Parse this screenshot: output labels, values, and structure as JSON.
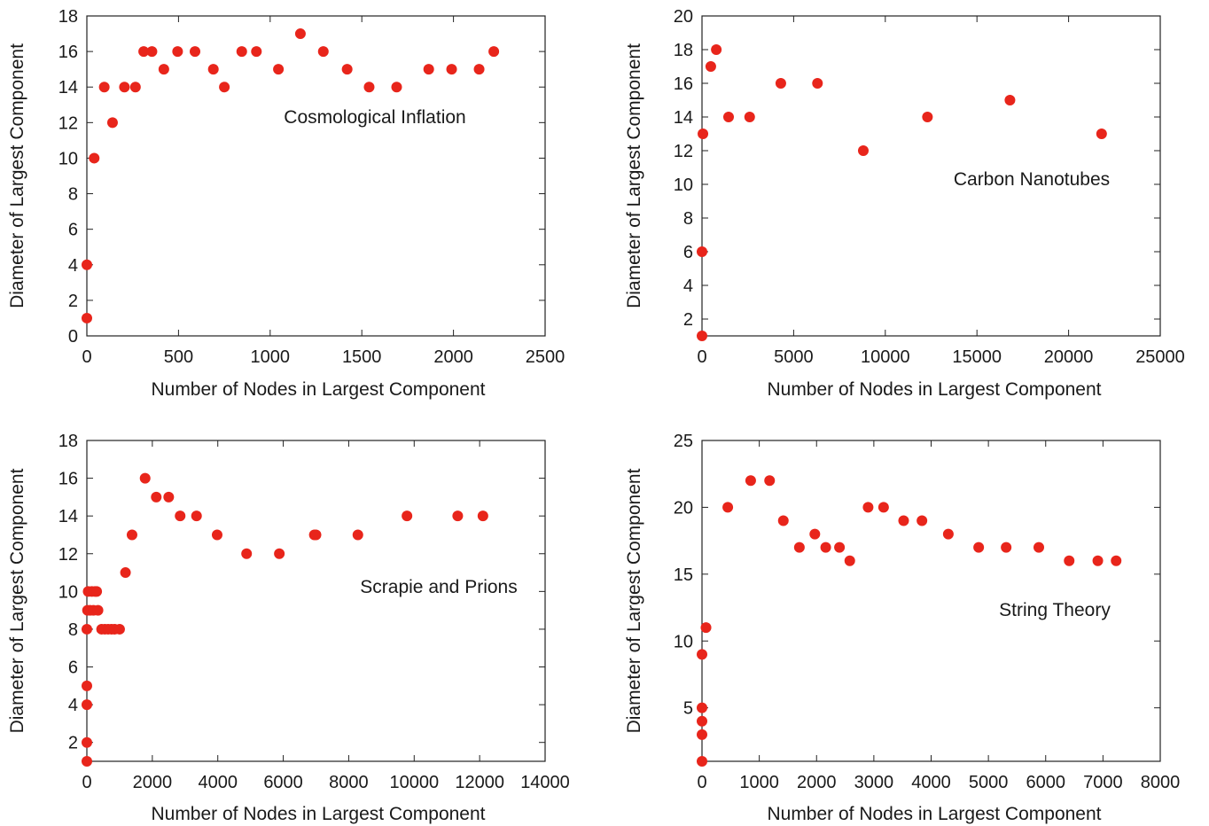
{
  "figure": {
    "marker_color": "#e8251b"
  },
  "chart_data": [
    {
      "type": "scatter",
      "title": "",
      "annotation": "Cosmological Inflation",
      "xlabel": "Number of Nodes in Largest Component",
      "ylabel": "Diameter of Largest Component",
      "xlim": [
        0,
        2500
      ],
      "ylim": [
        0,
        18
      ],
      "xticks": [
        0,
        500,
        1000,
        1500,
        2000,
        2500
      ],
      "yticks": [
        0,
        2,
        4,
        6,
        8,
        10,
        12,
        14,
        16,
        18
      ],
      "grid": false,
      "points": [
        [
          0,
          1
        ],
        [
          0,
          4
        ],
        [
          40,
          10
        ],
        [
          95,
          14
        ],
        [
          140,
          12
        ],
        [
          205,
          14
        ],
        [
          265,
          14
        ],
        [
          310,
          16
        ],
        [
          355,
          16
        ],
        [
          420,
          15
        ],
        [
          495,
          16
        ],
        [
          590,
          16
        ],
        [
          690,
          15
        ],
        [
          750,
          14
        ],
        [
          845,
          16
        ],
        [
          925,
          16
        ],
        [
          1045,
          15
        ],
        [
          1165,
          17
        ],
        [
          1290,
          16
        ],
        [
          1420,
          15
        ],
        [
          1540,
          14
        ],
        [
          1690,
          14
        ],
        [
          1865,
          15
        ],
        [
          1990,
          15
        ],
        [
          2140,
          15
        ],
        [
          2220,
          16
        ]
      ]
    },
    {
      "type": "scatter",
      "title": "",
      "annotation": "Carbon Nanotubes",
      "xlabel": "Number of Nodes in Largest Component",
      "ylabel": "Diameter of Largest Component",
      "xlim": [
        0,
        25000
      ],
      "ylim": [
        1,
        20
      ],
      "xticks": [
        0,
        5000,
        10000,
        15000,
        20000,
        25000
      ],
      "yticks": [
        2,
        4,
        6,
        8,
        10,
        12,
        14,
        16,
        18,
        20
      ],
      "grid": false,
      "points": [
        [
          0,
          1
        ],
        [
          0,
          6
        ],
        [
          50,
          13
        ],
        [
          480,
          17
        ],
        [
          780,
          18
        ],
        [
          1450,
          14
        ],
        [
          2600,
          14
        ],
        [
          4300,
          16
        ],
        [
          6300,
          16
        ],
        [
          8800,
          12
        ],
        [
          12300,
          14
        ],
        [
          16800,
          15
        ],
        [
          21800,
          13
        ]
      ]
    },
    {
      "type": "scatter",
      "title": "",
      "annotation": "Scrapie and Prions",
      "xlabel": "Number of Nodes in Largest Component",
      "ylabel": "Diameter of Largest Component",
      "xlim": [
        0,
        14000
      ],
      "ylim": [
        1,
        18
      ],
      "xticks": [
        0,
        2000,
        4000,
        6000,
        8000,
        10000,
        12000,
        14000
      ],
      "yticks": [
        2,
        4,
        6,
        8,
        10,
        12,
        14,
        16,
        18
      ],
      "grid": false,
      "points": [
        [
          0,
          1
        ],
        [
          0,
          2
        ],
        [
          0,
          4
        ],
        [
          0,
          5
        ],
        [
          0,
          8
        ],
        [
          20,
          9
        ],
        [
          40,
          10
        ],
        [
          100,
          9
        ],
        [
          150,
          10
        ],
        [
          200,
          9
        ],
        [
          250,
          10
        ],
        [
          300,
          10
        ],
        [
          340,
          9
        ],
        [
          450,
          8
        ],
        [
          550,
          8
        ],
        [
          650,
          8
        ],
        [
          750,
          8
        ],
        [
          850,
          8
        ],
        [
          1000,
          8
        ],
        [
          1180,
          11
        ],
        [
          1380,
          13
        ],
        [
          1780,
          16
        ],
        [
          2120,
          15
        ],
        [
          2500,
          15
        ],
        [
          2850,
          14
        ],
        [
          3350,
          14
        ],
        [
          3980,
          13
        ],
        [
          4880,
          12
        ],
        [
          5880,
          12
        ],
        [
          6950,
          13
        ],
        [
          7000,
          13
        ],
        [
          8280,
          13
        ],
        [
          9780,
          14
        ],
        [
          11330,
          14
        ],
        [
          12100,
          14
        ]
      ]
    },
    {
      "type": "scatter",
      "title": "",
      "annotation": "String Theory",
      "xlabel": "Number of Nodes in Largest Component",
      "ylabel": "Diameter of Largest Component",
      "xlim": [
        0,
        8000
      ],
      "ylim": [
        1,
        25
      ],
      "xticks": [
        0,
        1000,
        2000,
        3000,
        4000,
        5000,
        6000,
        7000,
        8000
      ],
      "yticks": [
        5,
        10,
        15,
        20,
        25
      ],
      "grid": false,
      "points": [
        [
          0,
          1
        ],
        [
          0,
          3
        ],
        [
          0,
          4
        ],
        [
          0,
          5
        ],
        [
          0,
          9
        ],
        [
          70,
          11
        ],
        [
          450,
          20
        ],
        [
          850,
          22
        ],
        [
          1180,
          22
        ],
        [
          1420,
          19
        ],
        [
          1700,
          17
        ],
        [
          1970,
          18
        ],
        [
          2160,
          17
        ],
        [
          2400,
          17
        ],
        [
          2580,
          16
        ],
        [
          2900,
          20
        ],
        [
          3170,
          20
        ],
        [
          3520,
          19
        ],
        [
          3840,
          19
        ],
        [
          4300,
          18
        ],
        [
          4830,
          17
        ],
        [
          5310,
          17
        ],
        [
          5880,
          17
        ],
        [
          6410,
          16
        ],
        [
          6910,
          16
        ],
        [
          7230,
          16
        ]
      ]
    }
  ]
}
